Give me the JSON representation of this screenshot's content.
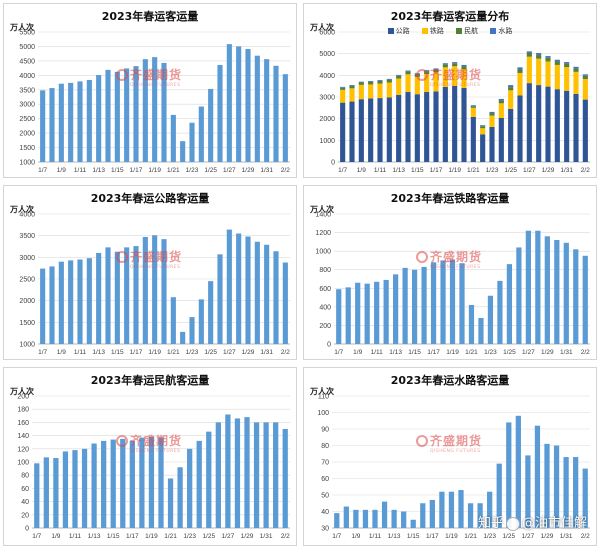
{
  "colors": {
    "bar": "#5b9bd5",
    "highway": "#2f5597",
    "rail": "#ffc000",
    "air": "#548235",
    "water": "#4472c4",
    "grid": "#d9d9d9",
    "axis": "#a6a6a6"
  },
  "watermark": {
    "cn": "齐盛期货",
    "en": "QISHENG FUTURES"
  },
  "credit": {
    "text1": "知乎",
    "text2": "@",
    "text3": "油市佳解"
  },
  "charts": [
    {
      "id": "total",
      "type": "bar",
      "title": "2023年春运客运量",
      "unit": "万人次",
      "ylim": [
        1000,
        5500
      ],
      "yticks": [
        1000,
        1500,
        2000,
        2500,
        3000,
        3500,
        4000,
        4500,
        5000,
        5500
      ],
      "xticks": [
        "1/7",
        "1/9",
        "1/11",
        "1/13",
        "1/15",
        "1/17",
        "1/19",
        "1/21",
        "1/23",
        "1/25",
        "1/27",
        "1/29",
        "1/31",
        "2/2"
      ],
      "values": [
        3480,
        3560,
        3710,
        3740,
        3790,
        3840,
        4010,
        4190,
        4120,
        4240,
        4320,
        4560,
        4630,
        4430,
        2630,
        1720,
        2360,
        2920,
        3530,
        4360,
        5080,
        5000,
        4910,
        4680,
        4560,
        4330,
        4040
      ]
    },
    {
      "id": "distribution",
      "type": "stacked_bar",
      "title": "2023年春运客运量分布",
      "unit": "万人次",
      "ylim": [
        0,
        6000
      ],
      "yticks": [
        0,
        1000,
        2000,
        3000,
        4000,
        5000,
        6000
      ],
      "xticks": [
        "1/7",
        "1/9",
        "1/11",
        "1/13",
        "1/15",
        "1/17",
        "1/19",
        "1/21",
        "1/23",
        "1/25",
        "1/27",
        "1/29",
        "1/31",
        "2/2"
      ],
      "series": [
        {
          "name": "公路",
          "color": "#2f5597",
          "values": [
            2740,
            2790,
            2900,
            2930,
            2950,
            2980,
            3100,
            3230,
            3130,
            3230,
            3260,
            3470,
            3510,
            3420,
            2080,
            1280,
            1620,
            2030,
            2450,
            3070,
            3640,
            3550,
            3480,
            3360,
            3290,
            3140,
            2880
          ]
        },
        {
          "name": "铁路",
          "color": "#ffc000",
          "values": [
            590,
            610,
            660,
            650,
            670,
            690,
            750,
            820,
            800,
            830,
            880,
            900,
            910,
            870,
            420,
            280,
            520,
            680,
            860,
            1040,
            1220,
            1220,
            1160,
            1120,
            1090,
            1020,
            950
          ]
        },
        {
          "name": "民航",
          "color": "#548235",
          "values": [
            98,
            107,
            106,
            116,
            118,
            120,
            128,
            132,
            134,
            135,
            132,
            137,
            138,
            137,
            75,
            92,
            120,
            132,
            146,
            160,
            172,
            166,
            168,
            160,
            160,
            160,
            150
          ]
        },
        {
          "name": "水路",
          "color": "#4472c4",
          "values": [
            39,
            43,
            41,
            41,
            41,
            46,
            41,
            40,
            35,
            45,
            47,
            52,
            52,
            53,
            45,
            45,
            52,
            69,
            94,
            98,
            74,
            92,
            81,
            80,
            73,
            73,
            66
          ]
        }
      ]
    },
    {
      "id": "highway",
      "type": "bar",
      "title": "2023年春运公路客运量",
      "unit": "万人次",
      "ylim": [
        1000,
        4000
      ],
      "yticks": [
        1000,
        1500,
        2000,
        2500,
        3000,
        3500,
        4000
      ],
      "xticks": [
        "1/7",
        "1/9",
        "1/11",
        "1/13",
        "1/15",
        "1/17",
        "1/19",
        "1/21",
        "1/23",
        "1/25",
        "1/27",
        "1/29",
        "1/31",
        "2/2"
      ],
      "values": [
        2740,
        2790,
        2900,
        2930,
        2950,
        2980,
        3100,
        3230,
        3130,
        3230,
        3260,
        3470,
        3510,
        3420,
        2080,
        1280,
        1620,
        2030,
        2450,
        3070,
        3640,
        3550,
        3480,
        3360,
        3290,
        3140,
        2880
      ]
    },
    {
      "id": "rail",
      "type": "bar",
      "title": "2023年春运铁路客运量",
      "unit": "万人次",
      "ylim": [
        0,
        1400
      ],
      "yticks": [
        0,
        200,
        400,
        600,
        800,
        1000,
        1200,
        1400
      ],
      "xticks": [
        "1/7",
        "1/9",
        "1/11",
        "1/13",
        "1/15",
        "1/17",
        "1/19",
        "1/21",
        "1/23",
        "1/25",
        "1/27",
        "1/29",
        "1/31",
        "2/2"
      ],
      "values": [
        590,
        610,
        660,
        650,
        670,
        690,
        750,
        820,
        800,
        830,
        880,
        900,
        910,
        870,
        420,
        280,
        520,
        680,
        860,
        1040,
        1220,
        1220,
        1160,
        1120,
        1090,
        1020,
        950
      ]
    },
    {
      "id": "air",
      "type": "bar",
      "title": "2023年春运民航客运量",
      "unit": "万人次",
      "ylim": [
        0,
        200
      ],
      "yticks": [
        0,
        20,
        40,
        60,
        80,
        100,
        120,
        140,
        160,
        180,
        200
      ],
      "xticks": [
        "1/7",
        "1/9",
        "1/11",
        "1/13",
        "1/15",
        "1/17",
        "1/19",
        "1/21",
        "1/23",
        "1/25",
        "1/27",
        "1/29",
        "1/31",
        "2/2"
      ],
      "values": [
        98,
        107,
        106,
        116,
        118,
        120,
        128,
        132,
        134,
        135,
        132,
        137,
        138,
        137,
        75,
        92,
        120,
        132,
        146,
        160,
        172,
        166,
        168,
        160,
        160,
        160,
        150
      ]
    },
    {
      "id": "water",
      "type": "bar",
      "title": "2023年春运水路客运量",
      "unit": "万人次",
      "ylim": [
        30,
        110
      ],
      "yticks": [
        30,
        40,
        50,
        60,
        70,
        80,
        90,
        100,
        110
      ],
      "xticks": [
        "1/7",
        "1/9",
        "1/11",
        "1/13",
        "1/15",
        "1/17",
        "1/19",
        "1/21",
        "1/23",
        "1/25",
        "1/27",
        "1/29",
        "1/31",
        "2/2"
      ],
      "values": [
        39,
        43,
        41,
        41,
        41,
        46,
        41,
        40,
        35,
        45,
        47,
        52,
        52,
        53,
        45,
        45,
        52,
        69,
        94,
        98,
        74,
        92,
        81,
        80,
        73,
        73,
        66
      ]
    }
  ],
  "chart_data": [
    {
      "type": "bar",
      "title": "2023年春运客运量",
      "ylabel": "万人次",
      "ylim": [
        1000,
        5500
      ]
    },
    {
      "type": "bar",
      "title": "2023年春运客运量分布",
      "ylabel": "万人次",
      "stacked": true,
      "legend": "top",
      "ylim": [
        0,
        6000
      ]
    },
    {
      "type": "bar",
      "title": "2023年春运公路客运量",
      "ylabel": "万人次",
      "ylim": [
        1000,
        4000
      ]
    },
    {
      "type": "bar",
      "title": "2023年春运铁路客运量",
      "ylabel": "万人次",
      "ylim": [
        0,
        1400
      ]
    },
    {
      "type": "bar",
      "title": "2023年春运民航客运量",
      "ylabel": "万人次",
      "ylim": [
        0,
        200
      ]
    },
    {
      "type": "bar",
      "title": "2023年春运水路客运量",
      "ylabel": "万人次",
      "ylim": [
        30,
        110
      ]
    }
  ]
}
